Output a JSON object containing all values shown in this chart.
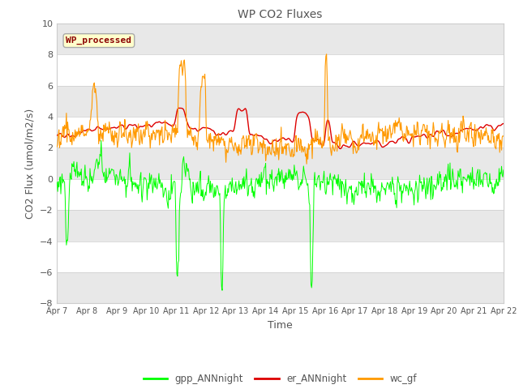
{
  "title": "WP CO2 Fluxes",
  "xlabel": "Time",
  "ylabel": "CO2 Flux (umol/m2/s)",
  "ylim": [
    -8,
    10
  ],
  "annotation": "WP_processed",
  "fig_bg_color": "#ffffff",
  "plot_bg_color": "#ffffff",
  "band_color_light": "#e8e8e8",
  "band_color_white": "#ffffff",
  "line_colors": {
    "gpp": "#00ff00",
    "er": "#dd0000",
    "wc": "#ff9900"
  },
  "legend_labels": [
    "gpp_ANNnight",
    "er_ANNnight",
    "wc_gf"
  ],
  "xtick_labels": [
    "Apr 7",
    "Apr 8",
    "Apr 9",
    "Apr 10",
    "Apr 11",
    "Apr 12",
    "Apr 13",
    "Apr 14",
    "Apr 15",
    "Apr 16",
    "Apr 17",
    "Apr 18",
    "Apr 19",
    "Apr 20",
    "Apr 21",
    "Apr 22"
  ],
  "n_points": 720,
  "seed": 42
}
